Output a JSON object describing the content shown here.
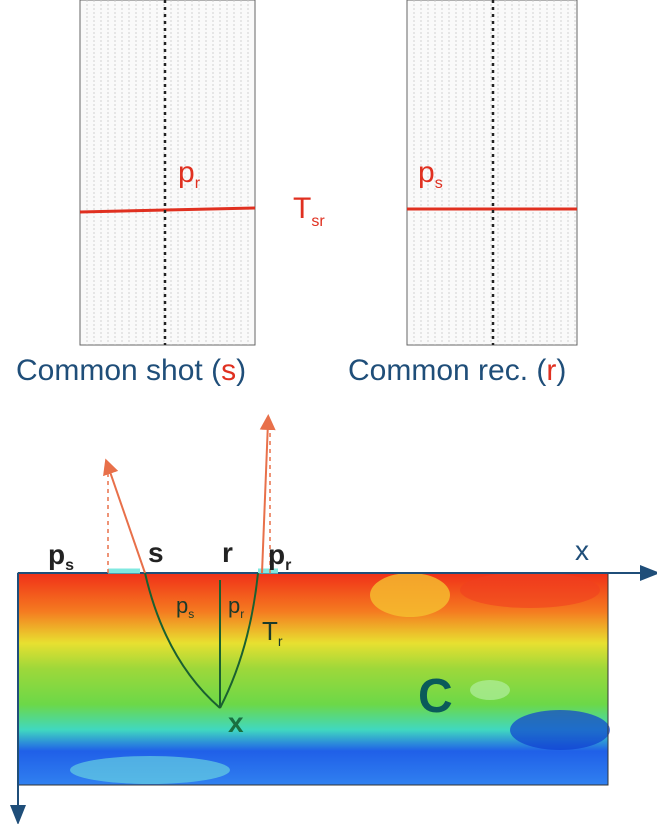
{
  "top_left_panel": {
    "label": {
      "main": "p",
      "sub": "r"
    },
    "caption": {
      "text": "Common shot (",
      "symbol": "s",
      "close": ")"
    }
  },
  "travel_time": {
    "main": "T",
    "sub": "sr"
  },
  "top_right_panel": {
    "label": {
      "main": "p",
      "sub": "s"
    },
    "caption": {
      "text": "Common rec. (",
      "symbol": "r",
      "close": ")"
    }
  },
  "section": {
    "surface_labels": {
      "ps": {
        "main": "p",
        "sub": "s"
      },
      "s": "s",
      "r": "r",
      "pr": {
        "main": "p",
        "sub": "r"
      },
      "x_axis": "x"
    },
    "angle_labels": {
      "left": {
        "main": "p",
        "sub": "s"
      },
      "right": {
        "main": "p",
        "sub": "r"
      }
    },
    "time_label": {
      "main": "T",
      "sub": "r"
    },
    "point_label": "x",
    "model_label": "C"
  }
}
